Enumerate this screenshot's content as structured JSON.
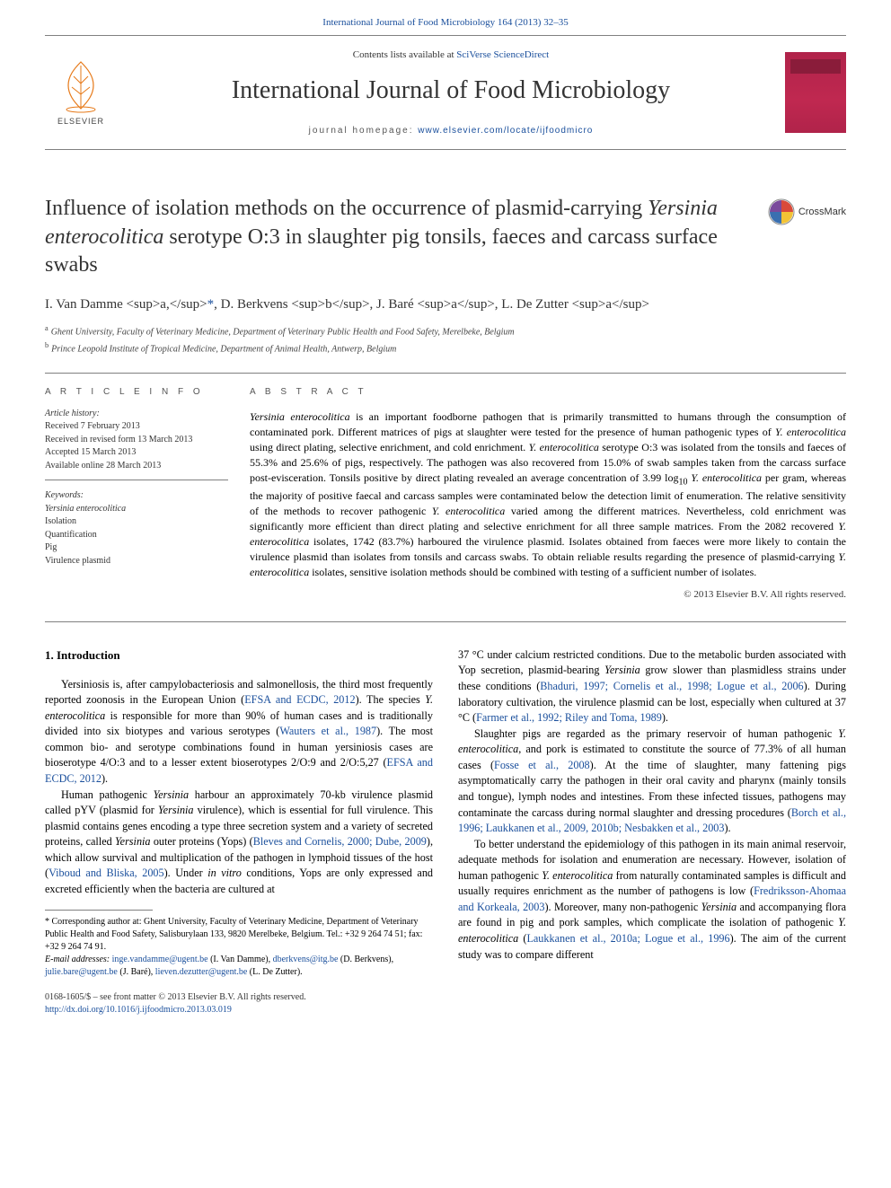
{
  "header": {
    "citation_text": "International Journal of Food Microbiology 164 (2013) 32–35",
    "citation_url": "#",
    "contents_prefix": "Contents lists available at ",
    "contents_link": "SciVerse ScienceDirect",
    "journal_title": "International Journal of Food Microbiology",
    "homepage_prefix": "journal homepage: ",
    "homepage_link": "www.elsevier.com/locate/ijfoodmicro",
    "elsevier_label": "ELSEVIER"
  },
  "crossmark": {
    "label": "CrossMark"
  },
  "article": {
    "title_pre": "Influence of isolation methods on the occurrence of plasmid-carrying ",
    "title_ital": "Yersinia enterocolitica",
    "title_post": " serotype O:3 in slaughter pig tonsils, faeces and carcass surface swabs",
    "authors_html": "I. Van Damme <sup>a,</sup>",
    "author_star": "*",
    "authors_rest": ", D. Berkvens <sup>b</sup>, J. Baré <sup>a</sup>, L. De Zutter <sup>a</sup>",
    "affil_a": "Ghent University, Faculty of Veterinary Medicine, Department of Veterinary Public Health and Food Safety, Merelbeke, Belgium",
    "affil_b": "Prince Leopold Institute of Tropical Medicine, Department of Animal Health, Antwerp, Belgium"
  },
  "meta": {
    "info_heading": "A R T I C L E   I N F O",
    "history_label": "Article history:",
    "history": [
      "Received 7 February 2013",
      "Received in revised form 13 March 2013",
      "Accepted 15 March 2013",
      "Available online 28 March 2013"
    ],
    "keywords_label": "Keywords:",
    "keywords": [
      "Yersinia enterocolitica",
      "Isolation",
      "Quantification",
      "Pig",
      "Virulence plasmid"
    ]
  },
  "abstract": {
    "heading": "A B S T R A C T",
    "text_parts": [
      {
        "t": "Yersinia enterocolitica",
        "i": true
      },
      {
        "t": " is an important foodborne pathogen that is primarily transmitted to humans through the consumption of contaminated pork. Different matrices of pigs at slaughter were tested for the presence of human pathogenic types of "
      },
      {
        "t": "Y. enterocolitica",
        "i": true
      },
      {
        "t": " using direct plating, selective enrichment, and cold enrichment. "
      },
      {
        "t": "Y. enterocolitica",
        "i": true
      },
      {
        "t": " serotype O:3 was isolated from the tonsils and faeces of 55.3% and 25.6% of pigs, respectively. The pathogen was also recovered from 15.0% of swab samples taken from the carcass surface post-evisceration. Tonsils positive by direct plating revealed an average concentration of 3.99 log"
      },
      {
        "t": "10",
        "sub": true
      },
      {
        "t": " "
      },
      {
        "t": "Y. enterocolitica",
        "i": true
      },
      {
        "t": " per gram, whereas the majority of positive faecal and carcass samples were contaminated below the detection limit of enumeration. The relative sensitivity of the methods to recover pathogenic "
      },
      {
        "t": "Y. enterocolitica",
        "i": true
      },
      {
        "t": " varied among the different matrices. Nevertheless, cold enrichment was significantly more efficient than direct plating and selective enrichment for all three sample matrices. From the 2082 recovered "
      },
      {
        "t": "Y. enterocolitica",
        "i": true
      },
      {
        "t": " isolates, 1742 (83.7%) harboured the virulence plasmid. Isolates obtained from faeces were more likely to contain the virulence plasmid than isolates from tonsils and carcass swabs. To obtain reliable results regarding the presence of plasmid-carrying "
      },
      {
        "t": "Y. enterocolitica",
        "i": true
      },
      {
        "t": " isolates, sensitive isolation methods should be combined with testing of a sufficient number of isolates."
      }
    ],
    "copyright": "© 2013 Elsevier B.V. All rights reserved."
  },
  "body": {
    "section_heading": "1. Introduction",
    "left_paras": [
      [
        {
          "t": "Yersiniosis is, after campylobacteriosis and salmonellosis, the third most frequently reported zoonosis in the European Union ("
        },
        {
          "t": "EFSA and ECDC, 2012",
          "link": true
        },
        {
          "t": "). The species "
        },
        {
          "t": "Y. enterocolitica",
          "i": true
        },
        {
          "t": " is responsible for more than 90% of human cases and is traditionally divided into six biotypes and various serotypes ("
        },
        {
          "t": "Wauters et al., 1987",
          "link": true
        },
        {
          "t": "). The most common bio- and serotype combinations found in human yersiniosis cases are bioserotype 4/O:3 and to a lesser extent bioserotypes 2/O:9 and 2/O:5,27 ("
        },
        {
          "t": "EFSA and ECDC, 2012",
          "link": true
        },
        {
          "t": ")."
        }
      ],
      [
        {
          "t": "Human pathogenic "
        },
        {
          "t": "Yersinia",
          "i": true
        },
        {
          "t": " harbour an approximately 70-kb virulence plasmid called pYV (plasmid for "
        },
        {
          "t": "Yersinia",
          "i": true
        },
        {
          "t": " virulence), which is essential for full virulence. This plasmid contains genes encoding a type three secretion system and a variety of secreted proteins, called "
        },
        {
          "t": "Yersinia",
          "i": true
        },
        {
          "t": " outer proteins (Yops) ("
        },
        {
          "t": "Bleves and Cornelis, 2000; Dube, 2009",
          "link": true
        },
        {
          "t": "), which allow survival and multiplication of the pathogen in lymphoid tissues of the host ("
        },
        {
          "t": "Viboud and Bliska, 2005",
          "link": true
        },
        {
          "t": "). Under "
        },
        {
          "t": "in vitro",
          "i": true
        },
        {
          "t": " conditions, Yops are only expressed and excreted efficiently when the bacteria are cultured at"
        }
      ]
    ],
    "right_paras": [
      [
        {
          "t": "37 °C under calcium restricted conditions. Due to the metabolic burden associated with Yop secretion, plasmid-bearing "
        },
        {
          "t": "Yersinia",
          "i": true
        },
        {
          "t": " grow slower than plasmidless strains under these conditions ("
        },
        {
          "t": "Bhaduri, 1997; Cornelis et al., 1998; Logue et al., 2006",
          "link": true
        },
        {
          "t": "). During laboratory cultivation, the virulence plasmid can be lost, especially when cultured at 37 °C ("
        },
        {
          "t": "Farmer et al., 1992; Riley and Toma, 1989",
          "link": true
        },
        {
          "t": ")."
        }
      ],
      [
        {
          "t": "Slaughter pigs are regarded as the primary reservoir of human pathogenic "
        },
        {
          "t": "Y. enterocolitica",
          "i": true
        },
        {
          "t": ", and pork is estimated to constitute the source of 77.3% of all human cases ("
        },
        {
          "t": "Fosse et al., 2008",
          "link": true
        },
        {
          "t": "). At the time of slaughter, many fattening pigs asymptomatically carry the pathogen in their oral cavity and pharynx (mainly tonsils and tongue), lymph nodes and intestines. From these infected tissues, pathogens may contaminate the carcass during normal slaughter and dressing procedures ("
        },
        {
          "t": "Borch et al., 1996; Laukkanen et al., 2009, 2010b; Nesbakken et al., 2003",
          "link": true
        },
        {
          "t": ")."
        }
      ],
      [
        {
          "t": "To better understand the epidemiology of this pathogen in its main animal reservoir, adequate methods for isolation and enumeration are necessary. However, isolation of human pathogenic "
        },
        {
          "t": "Y. enterocolitica",
          "i": true
        },
        {
          "t": " from naturally contaminated samples is difficult and usually requires enrichment as the number of pathogens is low ("
        },
        {
          "t": "Fredriksson-Ahomaa and Korkeala, 2003",
          "link": true
        },
        {
          "t": "). Moreover, many non-pathogenic "
        },
        {
          "t": "Yersinia",
          "i": true
        },
        {
          "t": " and accompanying flora are found in pig and pork samples, which complicate the isolation of pathogenic "
        },
        {
          "t": "Y. enterocolitica",
          "i": true
        },
        {
          "t": " ("
        },
        {
          "t": "Laukkanen et al., 2010a; Logue et al., 1996",
          "link": true
        },
        {
          "t": "). The aim of the current study was to compare different"
        }
      ]
    ]
  },
  "footnotes": {
    "corr_label": "* Corresponding author at: Ghent University, Faculty of Veterinary Medicine, Department of Veterinary Public Health and Food Safety, Salisburylaan 133, 9820 Merelbeke, Belgium. Tel.: +32 9 264 74 51; fax: +32 9 264 74 91.",
    "email_label": "E-mail addresses:",
    "emails": [
      {
        "addr": "inge.vandamme@ugent.be",
        "who": " (I. Van Damme), "
      },
      {
        "addr": "dberkvens@itg.be",
        "who": " (D. Berkvens), "
      },
      {
        "addr": "julie.bare@ugent.be",
        "who": " (J. Baré), "
      },
      {
        "addr": "lieven.dezutter@ugent.be",
        "who": " (L. De Zutter)."
      }
    ]
  },
  "footer": {
    "issn_line": "0168-1605/$ – see front matter © 2013 Elsevier B.V. All rights reserved.",
    "doi": "http://dx.doi.org/10.1016/j.ijfoodmicro.2013.03.019"
  },
  "colors": {
    "link": "#1a4f9c",
    "rule": "#808080",
    "text": "#333333",
    "cover_bg": "#b0234a"
  }
}
